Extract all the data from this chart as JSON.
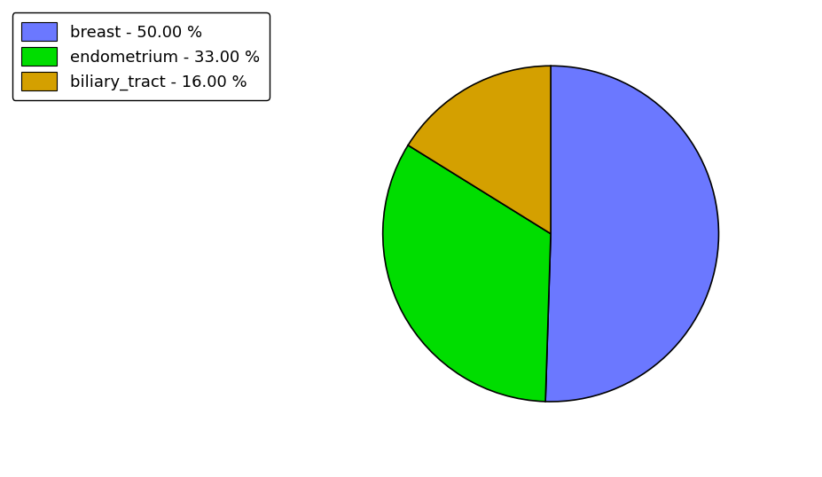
{
  "labels": [
    "breast",
    "endometrium",
    "biliary_tract"
  ],
  "values": [
    50.0,
    33.0,
    16.0
  ],
  "colors": [
    "#6b78ff",
    "#00dd00",
    "#d4a000"
  ],
  "legend_labels": [
    "breast - 50.00 %",
    "endometrium - 33.00 %",
    "biliary_tract - 16.00 %"
  ],
  "background_color": "#ffffff",
  "startangle": 90,
  "figsize": [
    9.27,
    5.38
  ],
  "dpi": 100
}
